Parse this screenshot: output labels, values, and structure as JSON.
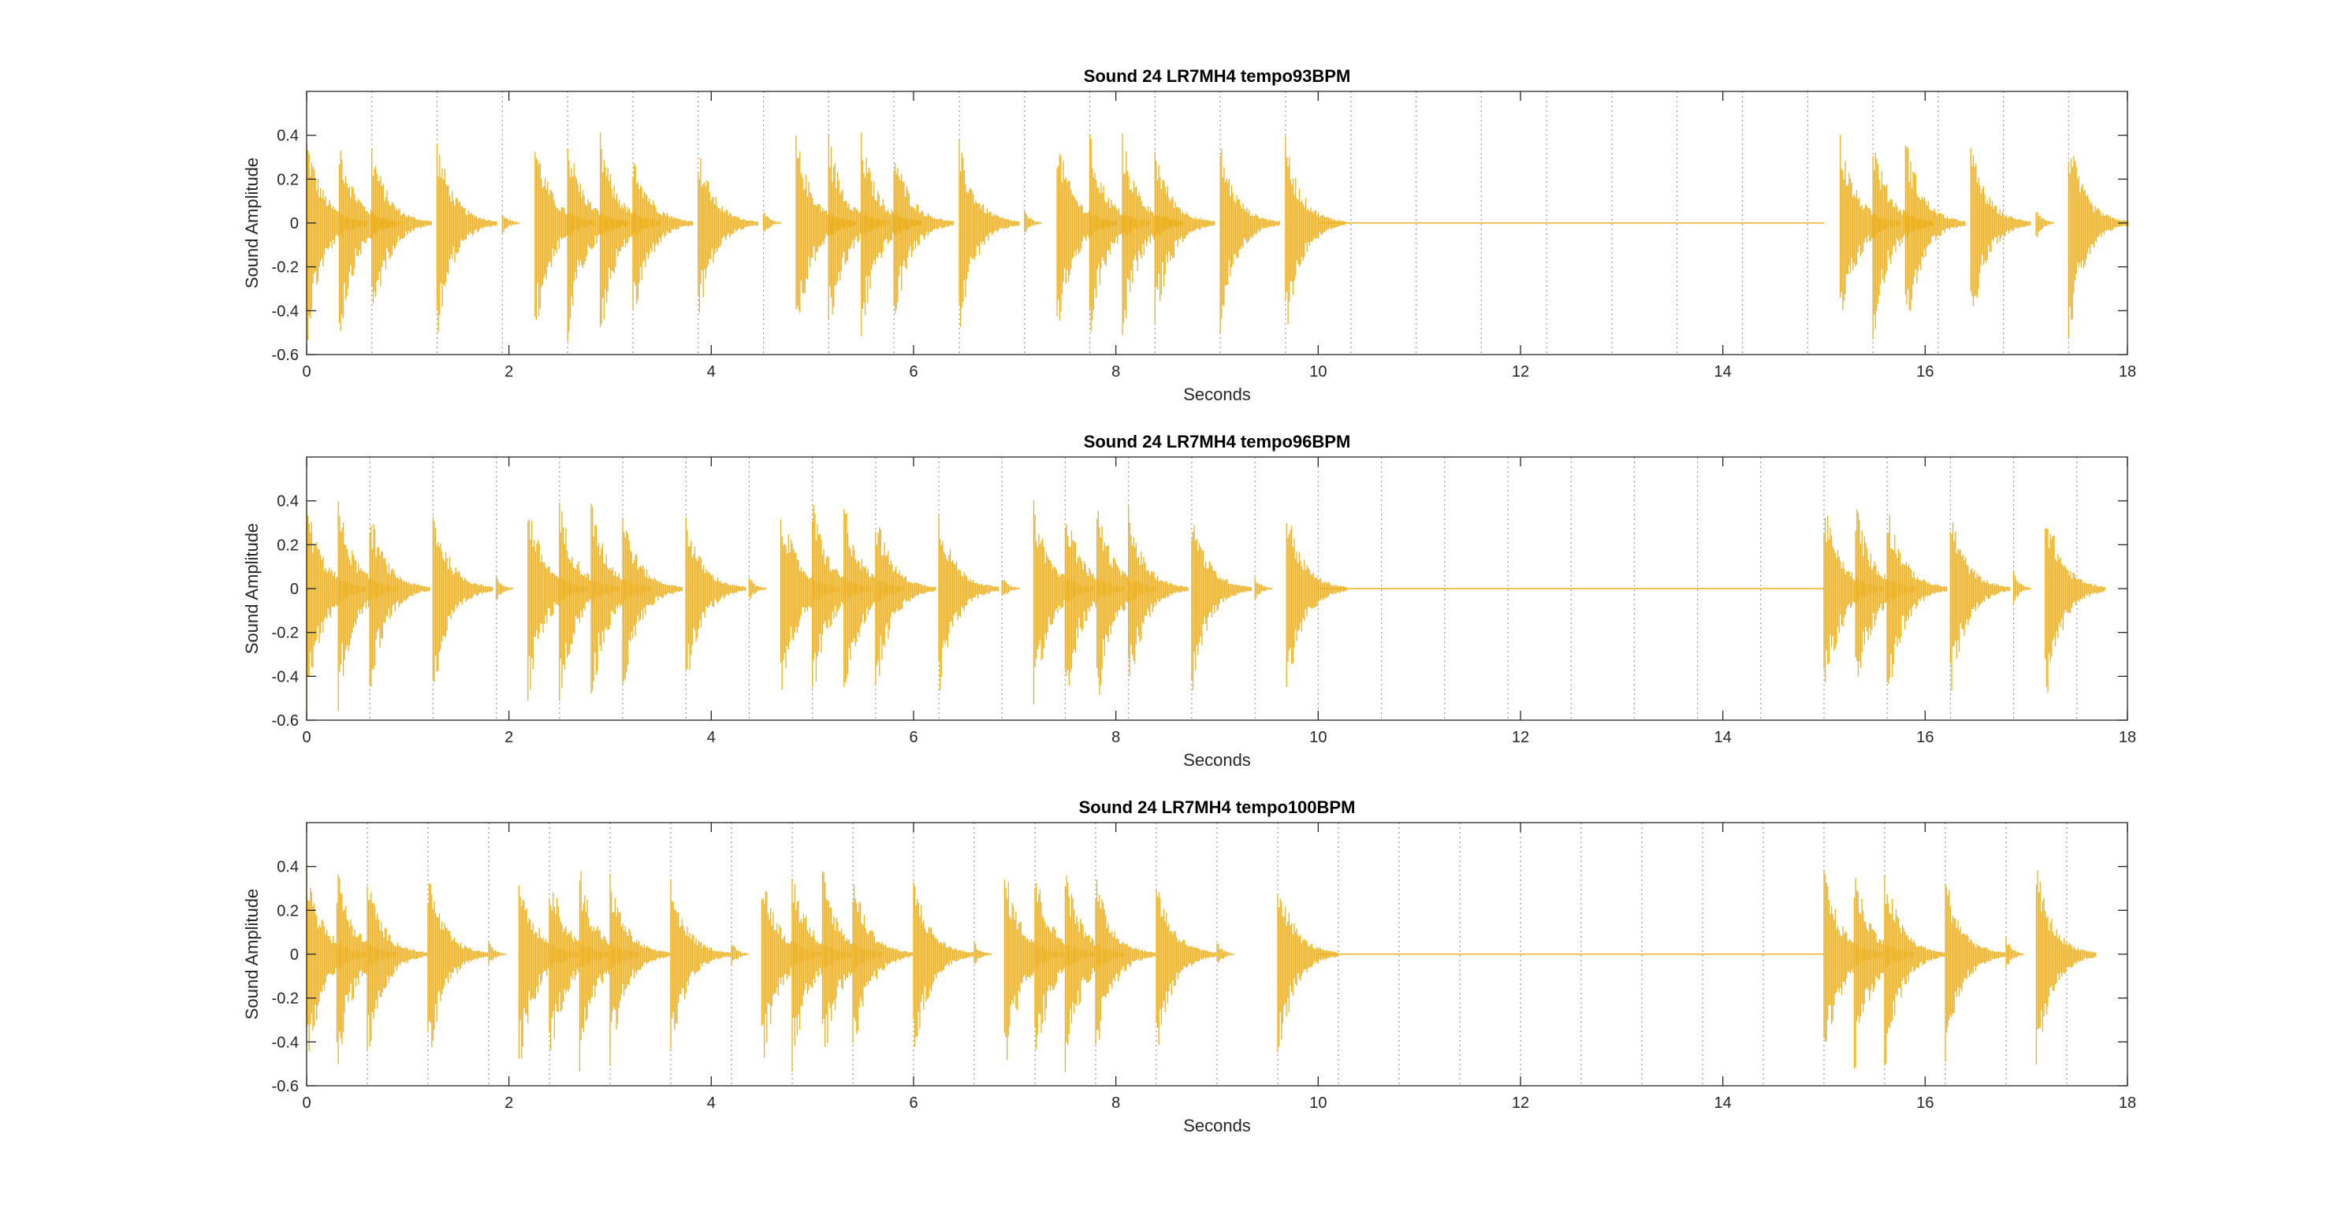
{
  "chart_data": [
    {
      "type": "line",
      "title": "Sound 24 LR7MH4 tempo93BPM",
      "xlabel": "Seconds",
      "ylabel": "Sound Amplitude",
      "xlim": [
        0,
        18
      ],
      "ylim": [
        -0.6,
        0.6
      ],
      "xticks": [
        0,
        2,
        4,
        6,
        8,
        10,
        12,
        14,
        16,
        18
      ],
      "yticks": [
        -0.6,
        -0.4,
        -0.2,
        0,
        0.2,
        0.4
      ],
      "grid": "dotted vertical beat markers",
      "beat_lines": [
        0.0,
        0.645,
        1.29,
        1.935,
        2.58,
        3.226,
        3.871,
        4.516,
        5.161,
        5.806,
        6.452,
        7.097,
        7.742,
        8.387,
        9.032,
        9.677,
        10.323,
        10.968,
        11.613,
        12.258,
        12.903,
        13.548,
        14.194,
        14.839,
        15.484,
        16.129,
        16.774,
        17.419
      ],
      "onsets": [
        {
          "t": 0.0,
          "a": 0.43
        },
        {
          "t": 0.323,
          "a": 0.42
        },
        {
          "t": 0.645,
          "a": 0.38
        },
        {
          "t": 1.29,
          "a": 0.4
        },
        {
          "t": 1.935,
          "a": 0.06
        },
        {
          "t": 2.258,
          "a": 0.42
        },
        {
          "t": 2.581,
          "a": 0.42
        },
        {
          "t": 2.903,
          "a": 0.42
        },
        {
          "t": 3.226,
          "a": 0.38
        },
        {
          "t": 3.871,
          "a": 0.36
        },
        {
          "t": 4.516,
          "a": 0.06
        },
        {
          "t": 4.839,
          "a": 0.42
        },
        {
          "t": 5.161,
          "a": 0.42
        },
        {
          "t": 5.484,
          "a": 0.42
        },
        {
          "t": 5.806,
          "a": 0.38
        },
        {
          "t": 6.452,
          "a": 0.38
        },
        {
          "t": 7.097,
          "a": 0.06
        },
        {
          "t": 7.419,
          "a": 0.42
        },
        {
          "t": 7.742,
          "a": 0.42
        },
        {
          "t": 8.065,
          "a": 0.42
        },
        {
          "t": 8.387,
          "a": 0.38
        },
        {
          "t": 9.032,
          "a": 0.38
        },
        {
          "t": 9.677,
          "a": 0.4
        },
        {
          "t": 15.161,
          "a": 0.42
        },
        {
          "t": 15.484,
          "a": 0.42
        },
        {
          "t": 15.806,
          "a": 0.42
        },
        {
          "t": 16.452,
          "a": 0.38
        },
        {
          "t": 17.097,
          "a": 0.08
        },
        {
          "t": 17.419,
          "a": 0.42
        }
      ],
      "silence": [
        10.0,
        15.0
      ],
      "color": "#EDB120"
    },
    {
      "type": "line",
      "title": "Sound 24 LR7MH4 tempo96BPM",
      "xlabel": "Seconds",
      "ylabel": "Sound Amplitude",
      "xlim": [
        0,
        18
      ],
      "ylim": [
        -0.6,
        0.6
      ],
      "xticks": [
        0,
        2,
        4,
        6,
        8,
        10,
        12,
        14,
        16,
        18
      ],
      "yticks": [
        -0.6,
        -0.4,
        -0.2,
        0,
        0.2,
        0.4
      ],
      "grid": "dotted vertical beat markers",
      "beat_lines": [
        0.0,
        0.625,
        1.25,
        1.875,
        2.5,
        3.125,
        3.75,
        4.375,
        5.0,
        5.625,
        6.25,
        6.875,
        7.5,
        8.125,
        8.75,
        9.375,
        10.0,
        10.625,
        11.25,
        11.875,
        12.5,
        13.125,
        13.75,
        14.375,
        15.0,
        15.625,
        16.25,
        16.875,
        17.5
      ],
      "onsets": [
        {
          "t": 0.0,
          "a": 0.43
        },
        {
          "t": 0.313,
          "a": 0.42
        },
        {
          "t": 0.625,
          "a": 0.38
        },
        {
          "t": 1.25,
          "a": 0.4
        },
        {
          "t": 1.875,
          "a": 0.06
        },
        {
          "t": 2.188,
          "a": 0.42
        },
        {
          "t": 2.5,
          "a": 0.42
        },
        {
          "t": 2.813,
          "a": 0.42
        },
        {
          "t": 3.125,
          "a": 0.38
        },
        {
          "t": 3.75,
          "a": 0.36
        },
        {
          "t": 4.375,
          "a": 0.06
        },
        {
          "t": 4.688,
          "a": 0.42
        },
        {
          "t": 5.0,
          "a": 0.42
        },
        {
          "t": 5.313,
          "a": 0.42
        },
        {
          "t": 5.625,
          "a": 0.38
        },
        {
          "t": 6.25,
          "a": 0.38
        },
        {
          "t": 6.875,
          "a": 0.06
        },
        {
          "t": 7.188,
          "a": 0.42
        },
        {
          "t": 7.5,
          "a": 0.42
        },
        {
          "t": 7.813,
          "a": 0.42
        },
        {
          "t": 8.125,
          "a": 0.38
        },
        {
          "t": 8.75,
          "a": 0.38
        },
        {
          "t": 9.375,
          "a": 0.06
        },
        {
          "t": 9.688,
          "a": 0.4
        },
        {
          "t": 15.0,
          "a": 0.42
        },
        {
          "t": 15.313,
          "a": 0.42
        },
        {
          "t": 15.625,
          "a": 0.42
        },
        {
          "t": 16.25,
          "a": 0.38
        },
        {
          "t": 16.875,
          "a": 0.08
        },
        {
          "t": 17.188,
          "a": 0.42
        }
      ],
      "silence": [
        10.0,
        15.0
      ],
      "color": "#EDB120"
    },
    {
      "type": "line",
      "title": "Sound 24 LR7MH4 tempo100BPM",
      "xlabel": "Seconds",
      "ylabel": "Sound Amplitude",
      "xlim": [
        0,
        18
      ],
      "ylim": [
        -0.6,
        0.6
      ],
      "xticks": [
        0,
        2,
        4,
        6,
        8,
        10,
        12,
        14,
        16,
        18
      ],
      "yticks": [
        -0.6,
        -0.4,
        -0.2,
        0,
        0.2,
        0.4
      ],
      "grid": "dotted vertical beat markers",
      "beat_lines": [
        0.0,
        0.6,
        1.2,
        1.8,
        2.4,
        3.0,
        3.6,
        4.2,
        4.8,
        5.4,
        6.0,
        6.6,
        7.2,
        7.8,
        8.4,
        9.0,
        9.6,
        10.2,
        10.8,
        11.4,
        12.0,
        12.6,
        13.2,
        13.8,
        14.4,
        15.0,
        15.6,
        16.2,
        16.8,
        17.4
      ],
      "onsets": [
        {
          "t": 0.0,
          "a": 0.43
        },
        {
          "t": 0.3,
          "a": 0.42
        },
        {
          "t": 0.6,
          "a": 0.38
        },
        {
          "t": 1.2,
          "a": 0.4
        },
        {
          "t": 1.8,
          "a": 0.06
        },
        {
          "t": 2.1,
          "a": 0.42
        },
        {
          "t": 2.4,
          "a": 0.42
        },
        {
          "t": 2.7,
          "a": 0.42
        },
        {
          "t": 3.0,
          "a": 0.38
        },
        {
          "t": 3.6,
          "a": 0.36
        },
        {
          "t": 4.2,
          "a": 0.06
        },
        {
          "t": 4.5,
          "a": 0.42
        },
        {
          "t": 4.8,
          "a": 0.42
        },
        {
          "t": 5.1,
          "a": 0.42
        },
        {
          "t": 5.4,
          "a": 0.38
        },
        {
          "t": 6.0,
          "a": 0.38
        },
        {
          "t": 6.6,
          "a": 0.06
        },
        {
          "t": 6.9,
          "a": 0.42
        },
        {
          "t": 7.2,
          "a": 0.42
        },
        {
          "t": 7.5,
          "a": 0.42
        },
        {
          "t": 7.8,
          "a": 0.38
        },
        {
          "t": 8.4,
          "a": 0.38
        },
        {
          "t": 9.0,
          "a": 0.06
        },
        {
          "t": 9.6,
          "a": 0.4
        },
        {
          "t": 15.0,
          "a": 0.42
        },
        {
          "t": 15.3,
          "a": 0.42
        },
        {
          "t": 15.6,
          "a": 0.42
        },
        {
          "t": 16.2,
          "a": 0.38
        },
        {
          "t": 16.8,
          "a": 0.08
        },
        {
          "t": 17.1,
          "a": 0.42
        }
      ],
      "silence": [
        10.0,
        15.0
      ],
      "color": "#EDB120"
    }
  ]
}
